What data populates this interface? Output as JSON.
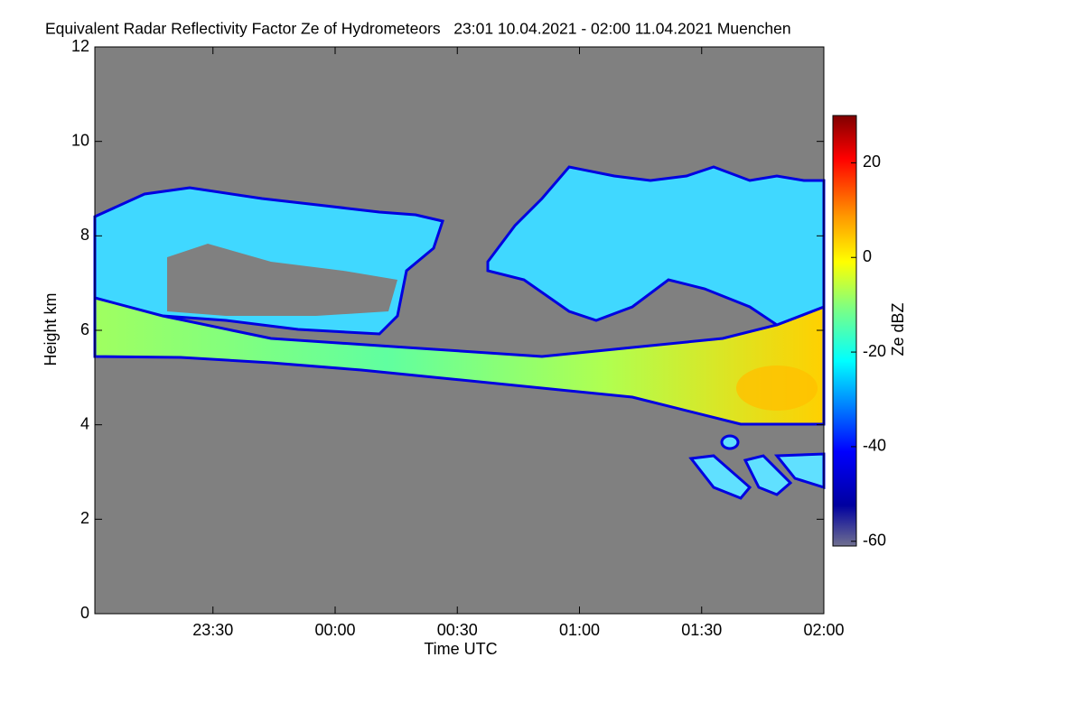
{
  "chart_data": {
    "type": "heatmap",
    "title": "Equivalent Radar Reflectivity Factor Ze of Hydrometeors   23:01 10.04.2021 - 02:00 11.04.2021 Muenchen",
    "x_label": "Time UTC",
    "y_label": "Height km",
    "xlim": [
      "23:01",
      "02:00"
    ],
    "xticks": [
      "23:30",
      "00:00",
      "00:30",
      "01:00",
      "01:30",
      "02:00"
    ],
    "ylim": [
      0,
      12
    ],
    "yticks": [
      0,
      2,
      4,
      6,
      8,
      10,
      12
    ],
    "colorbar": {
      "label": "Ze dBZ",
      "lim": [
        -61,
        30
      ],
      "ticks": [
        -60,
        -40,
        -20,
        0,
        20
      ]
    }
  }
}
